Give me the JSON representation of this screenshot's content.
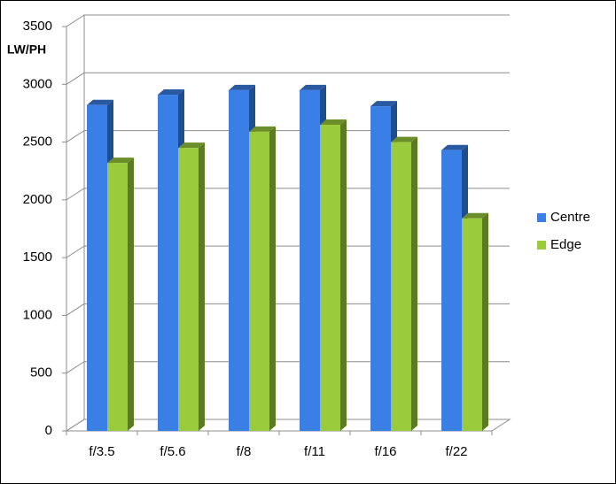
{
  "chart_data": {
    "type": "bar3d",
    "y_label": "LW/PH",
    "categories": [
      "f/3.5",
      "f/5.6",
      "f/8",
      "f/11",
      "f/16",
      "f/22"
    ],
    "series": [
      {
        "name": "Centre",
        "color": "#3a7fe6",
        "values": [
          2820,
          2910,
          2950,
          2950,
          2810,
          2430
        ]
      },
      {
        "name": "Edge",
        "color": "#9acb3c",
        "values": [
          2320,
          2450,
          2590,
          2650,
          2500,
          1840
        ]
      }
    ],
    "ylim": [
      0,
      3500
    ],
    "yticks": [
      0,
      500,
      1000,
      1500,
      2000,
      2500,
      3000,
      3500
    ],
    "grid": true,
    "legend": "right"
  }
}
